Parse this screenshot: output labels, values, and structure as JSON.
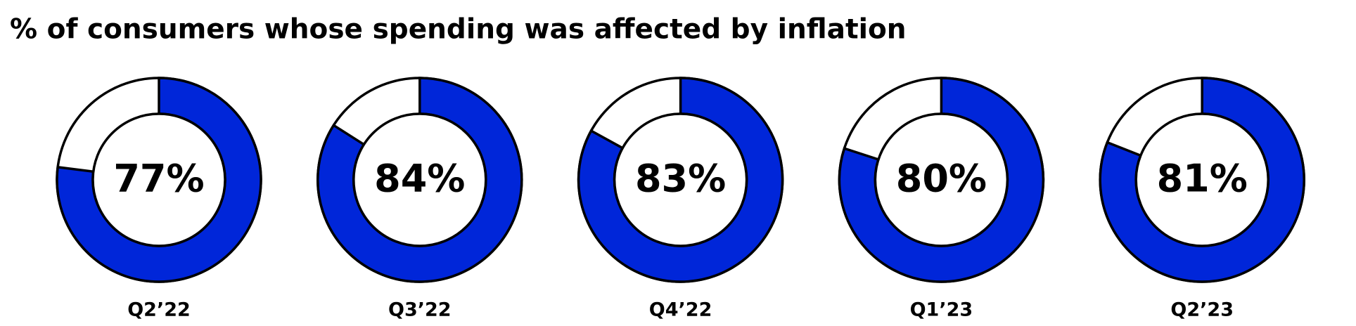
{
  "chart_data": {
    "type": "donut",
    "title": "% of consumers whose spending was affected by inflation",
    "categories": [
      "Q2’22",
      "Q3’22",
      "Q4’22",
      "Q1’23",
      "Q2’23"
    ],
    "values": [
      77,
      84,
      83,
      80,
      81
    ],
    "value_labels": [
      "77%",
      "84%",
      "83%",
      "80%",
      "81%"
    ],
    "color": "#0026d9"
  }
}
